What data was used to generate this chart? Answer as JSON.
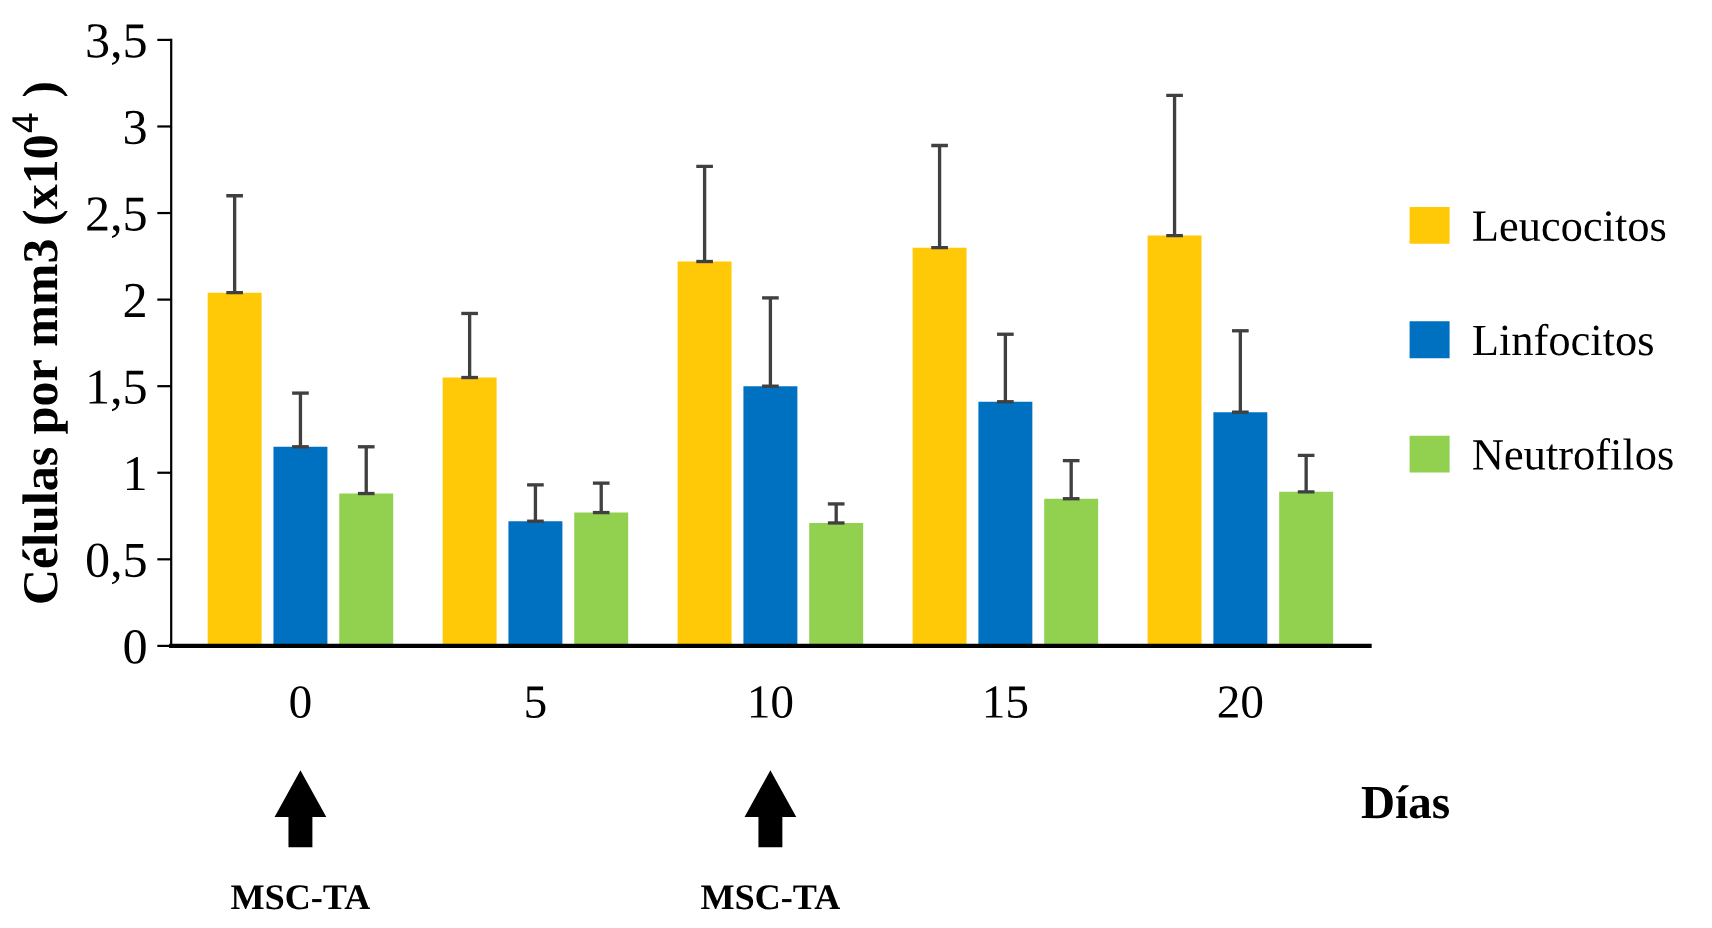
{
  "chart_data": {
    "type": "bar",
    "ylabel": "Células por mm3 (x10$^{4}$ )",
    "xlabel": "Días",
    "categories": [
      "0",
      "5",
      "10",
      "15",
      "20"
    ],
    "series": [
      {
        "name": "Leucocitos",
        "color": "#ffc907",
        "values": [
          2.04,
          1.55,
          2.22,
          2.3,
          2.37
        ],
        "errors": [
          [
            2.04,
            2.6
          ],
          [
            1.55,
            1.92
          ],
          [
            2.22,
            2.77
          ],
          [
            2.3,
            2.89
          ],
          [
            2.37,
            3.18
          ]
        ]
      },
      {
        "name": "Linfocitos",
        "color": "#0070c0",
        "values": [
          1.15,
          0.72,
          1.5,
          1.41,
          1.35
        ],
        "errors": [
          [
            1.15,
            1.46
          ],
          [
            0.72,
            0.93
          ],
          [
            1.5,
            2.01
          ],
          [
            1.41,
            1.8
          ],
          [
            1.35,
            1.82
          ]
        ]
      },
      {
        "name": "Neutrofilos",
        "color": "#92d050",
        "values": [
          0.88,
          0.77,
          0.71,
          0.85,
          0.89
        ],
        "errors": [
          [
            0.88,
            1.15
          ],
          [
            0.77,
            0.94
          ],
          [
            0.71,
            0.82
          ],
          [
            0.85,
            1.07
          ],
          [
            0.89,
            1.1
          ]
        ]
      }
    ],
    "ylim": [
      0,
      3.5
    ],
    "yticks": [
      0,
      {
        "value": 0.5,
        "label": "0,5"
      },
      1,
      {
        "value": 1.5,
        "label": "1,5"
      },
      2,
      {
        "value": 2.5,
        "label": "2,5"
      },
      3,
      {
        "value": 3.5,
        "label": "3,5"
      }
    ],
    "grid": false,
    "legend": "right",
    "annotations": [
      "MSC-TA",
      "MSC-TA"
    ]
  }
}
